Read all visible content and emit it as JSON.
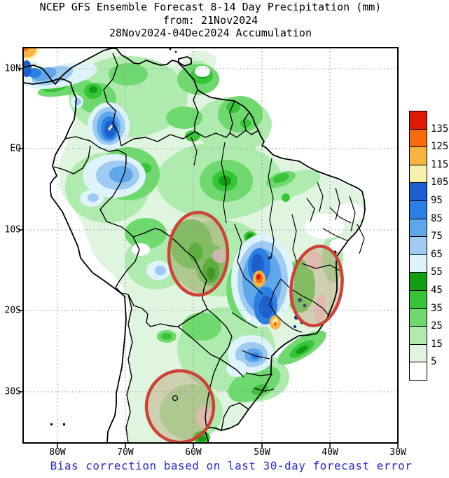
{
  "title": {
    "line1": "NCEP GFS Ensemble Forecast 8-14 Day Precipitation (mm)",
    "line2": "from: 21Nov2024",
    "line3": "28Nov2024-04Dec2024 Accumulation"
  },
  "caption": {
    "text": "Bias correction based on last 30-day forecast error",
    "color": "#2B2BD5"
  },
  "axes": {
    "y_labels": [
      "10N",
      "EQ",
      "10S",
      "20S",
      "30S"
    ],
    "x_labels": [
      "80W",
      "70W",
      "60W",
      "50W",
      "40W",
      "30W"
    ]
  },
  "colorbar": {
    "unit": "mm",
    "boundary_labels": [
      "135",
      "125",
      "115",
      "105",
      "95",
      "85",
      "75",
      "65",
      "55",
      "45",
      "35",
      "25",
      "15",
      "5"
    ],
    "colors_top_to_bottom": [
      "#DE1A00",
      "#FA6A0A",
      "#F8B441",
      "#F8EFAE",
      "#1B5FCE",
      "#2B7FE3",
      "#5FA7EA",
      "#9FCBF2",
      "#DFF3FA",
      "#119F11",
      "#37C437",
      "#6FD96F",
      "#AFEBAF",
      "#DFF5DF",
      "#FFFFFF"
    ]
  },
  "highlights": {
    "count": 3,
    "stroke_color": "#CE4238",
    "fill_wash": "tan translucent",
    "regions": [
      "central-brazil",
      "east-brazil-coast",
      "northern-argentina-uruguay"
    ]
  }
}
